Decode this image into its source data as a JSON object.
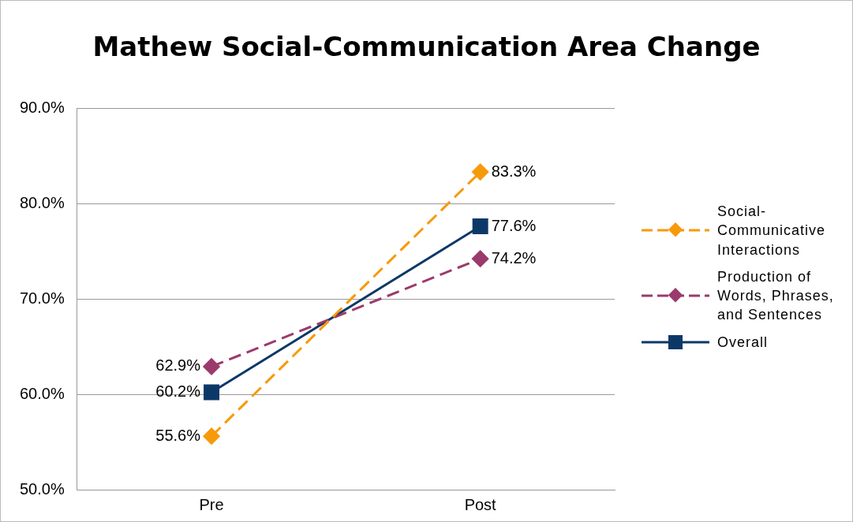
{
  "chart_data": {
    "type": "line",
    "title": "Mathew Social-Communication Area Change",
    "categories": [
      "Pre",
      "Post"
    ],
    "series": [
      {
        "name": "Social-Communicative Interactions",
        "color": "#f79a0a",
        "values": [
          55.6,
          83.3
        ],
        "value_labels": [
          "55.6%",
          "83.3%"
        ],
        "marker": "diamond",
        "line_style": "dashed"
      },
      {
        "name": "Production of Words, Phrases, and Sentences",
        "color": "#9b3a6c",
        "values": [
          62.9,
          74.2
        ],
        "value_labels": [
          "62.9%",
          "74.2%"
        ],
        "marker": "diamond",
        "line_style": "dashed"
      },
      {
        "name": "Overall",
        "color": "#0c3868",
        "values": [
          60.2,
          77.6
        ],
        "value_labels": [
          "60.2%",
          "77.6%"
        ],
        "marker": "square",
        "line_style": "solid"
      }
    ],
    "ylim": [
      50,
      90
    ],
    "yticks": [
      {
        "value": 50,
        "label": "50.0%"
      },
      {
        "value": 60,
        "label": "60.0%"
      },
      {
        "value": 70,
        "label": "70.0%"
      },
      {
        "value": 80,
        "label": "80.0%"
      },
      {
        "value": 90,
        "label": "90.0%"
      }
    ],
    "grid": "y",
    "legend": "right"
  }
}
